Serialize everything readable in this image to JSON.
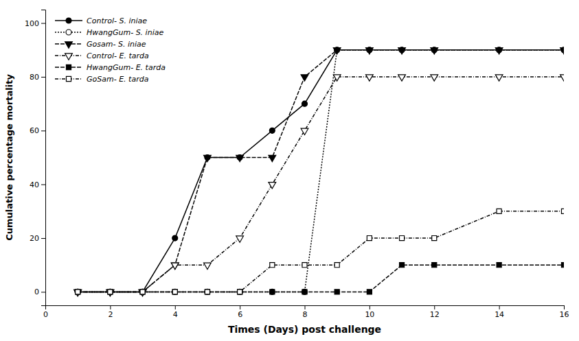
{
  "chart_data": {
    "type": "line",
    "xlabel": "Times (Days) post challenge",
    "ylabel": "Cumulative percentage mortality",
    "x": [
      1,
      2,
      3,
      4,
      5,
      6,
      7,
      8,
      9,
      10,
      11,
      12,
      14,
      16
    ],
    "xlim": [
      0,
      16
    ],
    "ylim": [
      -5,
      105
    ],
    "xticks": [
      0,
      2,
      4,
      6,
      8,
      10,
      12,
      14,
      16
    ],
    "yticks": [
      0,
      20,
      40,
      60,
      80,
      100
    ],
    "grid": false,
    "legend": "upper left",
    "series": [
      {
        "name": "Control- S. iniae",
        "color": "black",
        "marker": "circle",
        "line_style": "solid",
        "values": [
          0,
          0,
          0,
          20,
          50,
          50,
          60,
          70,
          90,
          90,
          90,
          90,
          90,
          90
        ]
      },
      {
        "name": "HwangGum- S. iniae",
        "color": "black",
        "marker": "circle-open",
        "line_style": "dotted",
        "values": [
          0,
          0,
          0,
          0,
          0,
          0,
          0,
          0,
          90,
          90,
          90,
          90,
          90,
          90
        ]
      },
      {
        "name": "Gosam- S. iniae",
        "color": "black",
        "marker": "triangle-down",
        "line_style": "dashed",
        "values": [
          0,
          0,
          0,
          10,
          50,
          50,
          50,
          80,
          90,
          90,
          90,
          90,
          90,
          90
        ]
      },
      {
        "name": "Control- E. tarda",
        "color": "black",
        "marker": "triangle-down-open",
        "line_style": "dashdot",
        "values": [
          0,
          0,
          0,
          10,
          10,
          20,
          40,
          60,
          80,
          80,
          80,
          80,
          80,
          80
        ]
      },
      {
        "name": "HwangGum- E. tarda",
        "color": "black",
        "marker": "square",
        "line_style": "dashed",
        "values": [
          0,
          0,
          0,
          0,
          0,
          0,
          0,
          0,
          0,
          0,
          10,
          10,
          10,
          10
        ]
      },
      {
        "name": "GoSam- E. tarda",
        "color": "black",
        "marker": "square-open",
        "line_style": "dashdot",
        "values": [
          0,
          0,
          0,
          0,
          0,
          0,
          10,
          10,
          10,
          20,
          20,
          20,
          30,
          30
        ]
      }
    ]
  }
}
